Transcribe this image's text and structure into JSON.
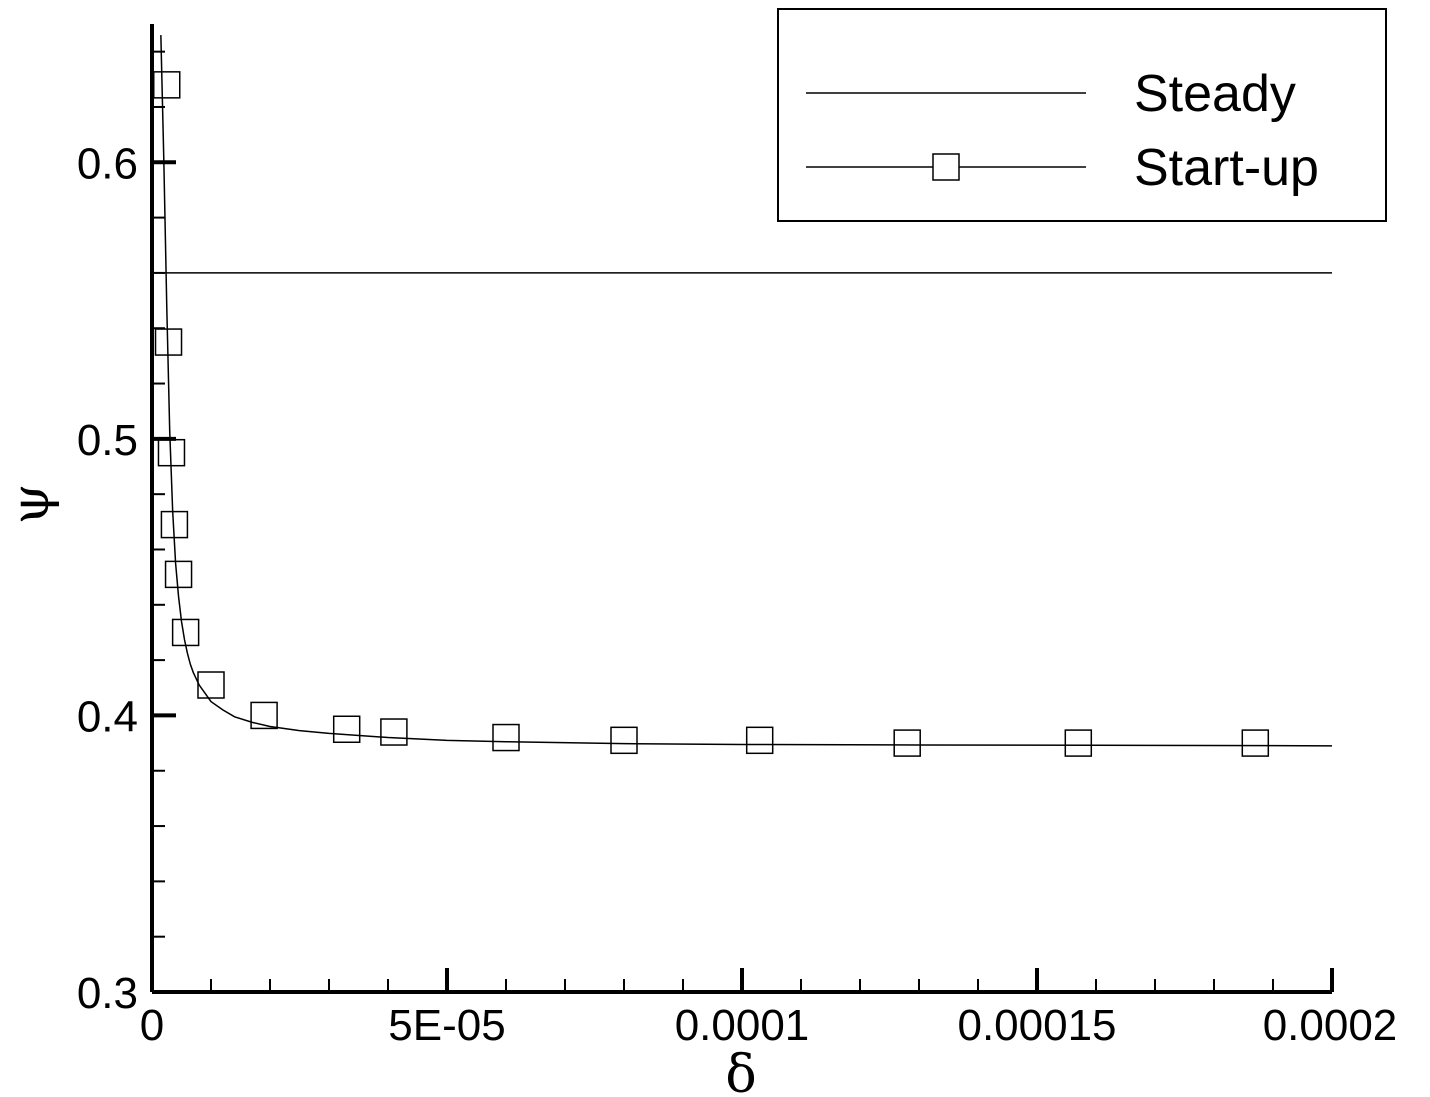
{
  "chart_data": {
    "type": "line",
    "title": "",
    "xlabel": "δ",
    "ylabel": "ψ",
    "xlim": [
      0,
      0.0002
    ],
    "ylim": [
      0.3,
      0.65
    ],
    "x_ticks": [
      {
        "value": 0,
        "label": "0"
      },
      {
        "value": 5e-05,
        "label": "5E-05"
      },
      {
        "value": 0.0001,
        "label": "0.0001"
      },
      {
        "value": 0.00015,
        "label": "0.00015"
      },
      {
        "value": 0.0002,
        "label": "0.0002"
      }
    ],
    "y_ticks": [
      {
        "value": 0.3,
        "label": "0.3"
      },
      {
        "value": 0.4,
        "label": "0.4"
      },
      {
        "value": 0.5,
        "label": "0.5"
      },
      {
        "value": 0.6,
        "label": "0.6"
      }
    ],
    "grid": false,
    "legend_position": "top-right",
    "series": [
      {
        "name": "Steady",
        "marker": "none",
        "color": "#000000",
        "x": [
          1.5e-06,
          0.0002
        ],
        "y": [
          0.56,
          0.56
        ]
      },
      {
        "name": "Start-up",
        "marker": "square",
        "color": "#000000",
        "curve_x": [
          1.5e-06,
          2e-06,
          2.5e-06,
          3e-06,
          3.5e-06,
          4e-06,
          4.5e-06,
          5e-06,
          5.5e-06,
          6e-06,
          6.5e-06,
          7e-06,
          8e-06,
          9e-06,
          1e-05,
          1.2e-05,
          1.4e-05,
          1.7e-05,
          2e-05,
          2.5e-05,
          3e-05,
          4e-05,
          5e-05,
          6e-05,
          8e-05,
          0.0001,
          0.00013,
          0.00016,
          0.00019,
          0.0002
        ],
        "curve_y": [
          0.646,
          0.601,
          0.548,
          0.503,
          0.474,
          0.455,
          0.443,
          0.434,
          0.4275,
          0.4225,
          0.4185,
          0.4155,
          0.411,
          0.408,
          0.405,
          0.402,
          0.3995,
          0.3975,
          0.396,
          0.3945,
          0.3935,
          0.392,
          0.391,
          0.3905,
          0.3898,
          0.3895,
          0.3893,
          0.3892,
          0.3891,
          0.389
        ],
        "x": [
          2.5e-06,
          2.8e-06,
          3.3e-06,
          3.8e-06,
          4.5e-06,
          5.7e-06,
          1e-05,
          1.9e-05,
          3.3e-05,
          4.1e-05,
          6e-05,
          8e-05,
          0.000103,
          0.000128,
          0.000157,
          0.000187
        ],
        "y": [
          0.628,
          0.535,
          0.495,
          0.469,
          0.451,
          0.43,
          0.411,
          0.4,
          0.395,
          0.394,
          0.392,
          0.391,
          0.391,
          0.39,
          0.39,
          0.39
        ]
      }
    ]
  }
}
